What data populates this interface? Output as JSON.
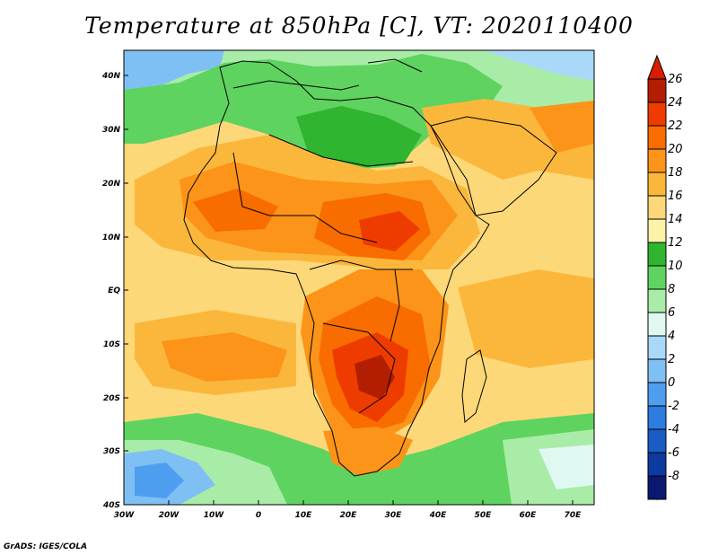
{
  "title": "Temperature at 850hPa [C], VT: 2020110400",
  "credit": "GrADS: IGES/COLA",
  "axes": {
    "lat_labels": [
      "40N",
      "30N",
      "20N",
      "10N",
      "EQ",
      "10S",
      "20S",
      "30S",
      "40S"
    ],
    "lon_labels": [
      "30W",
      "20W",
      "10W",
      "0",
      "10E",
      "20E",
      "30E",
      "40E",
      "50E",
      "60E",
      "70E"
    ]
  },
  "colorbar": {
    "labels": [
      "26",
      "24",
      "22",
      "20",
      "18",
      "16",
      "14",
      "12",
      "10",
      "8",
      "6",
      "4",
      "2",
      "0",
      "-2",
      "-4",
      "-6",
      "-8"
    ],
    "colors": [
      "#b41e00",
      "#ee3c00",
      "#f86c00",
      "#fb9418",
      "#fbb73c",
      "#fcd878",
      "#fdf3a8",
      "#2fb52f",
      "#5fd35f",
      "#a8eca8",
      "#dff8f2",
      "#aad8f8",
      "#7fc0f4",
      "#4e9ef0",
      "#2d7ce0",
      "#1a5cc4",
      "#0c3aa0",
      "#0a1870"
    ],
    "top_arrow_color": "#d81e00",
    "bottom_arrow_color": "#d6d8f8"
  },
  "palette": {
    "ocean_north": "#7fc0f4",
    "ocean_tropical": "#fcd878",
    "ocean_south": "#a8eca8",
    "land_warm": "#fb9418",
    "land_hot": "#ee3c00",
    "sahara": "#5fd35f",
    "arabia": "#fbb73c",
    "antarctic": "#4e9ef0"
  }
}
